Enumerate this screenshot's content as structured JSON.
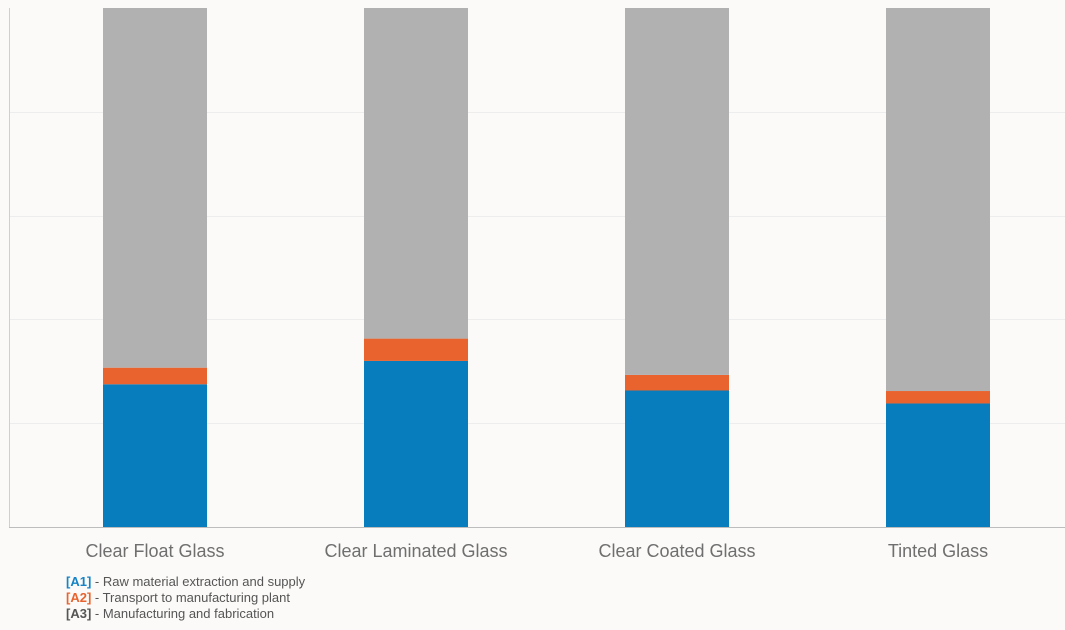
{
  "chart_data": {
    "type": "bar",
    "stacked": true,
    "categories": [
      "Clear Float Glass",
      "Clear Laminated Glass",
      "Clear Coated Glass",
      "Tinted Glass"
    ],
    "series": [
      {
        "name": "[A1]",
        "values": [
          27.5,
          32.0,
          26.3,
          23.8
        ],
        "color": "#087dbd"
      },
      {
        "name": "[A2]",
        "values": [
          3.2,
          4.3,
          3.0,
          2.4
        ],
        "color": "#e8632e"
      },
      {
        "name": "[A3]",
        "values": [
          69.3,
          63.7,
          70.7,
          73.8
        ],
        "color": "#b1b1b1"
      }
    ],
    "ylim": [
      0,
      100
    ],
    "grid": true,
    "legend_position": "bottom-left",
    "legend": [
      {
        "code": "[A1]",
        "text": " - Raw material extraction and supply",
        "color": "#1583c6"
      },
      {
        "code": "[A2]",
        "text": " - Transport to manufacturing plant",
        "color": "#e8632e"
      },
      {
        "code": "[A3]",
        "text": " - Manufacturing and fabrication",
        "color": "#555555"
      }
    ]
  }
}
